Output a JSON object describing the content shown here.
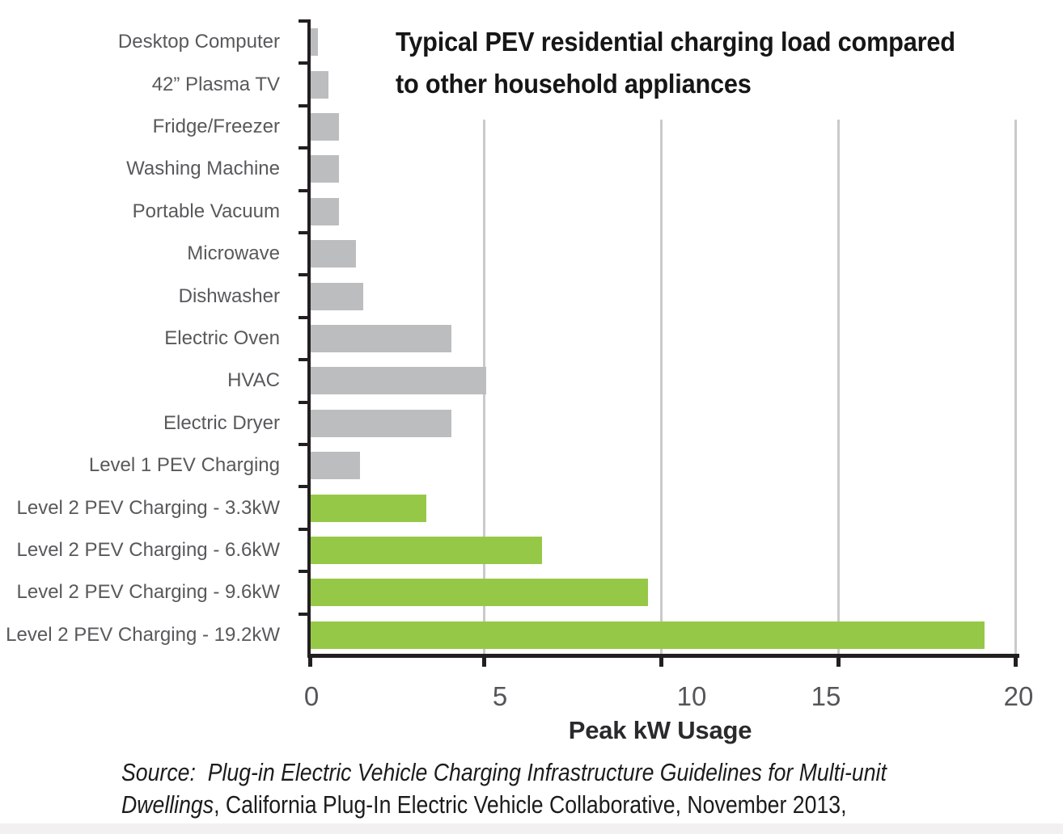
{
  "chart_data": {
    "type": "bar",
    "orientation": "horizontal",
    "title": "Typical PEV residential charging load compared to other household appliances",
    "title_lines": [
      "Typical PEV residential charging load compared",
      "to other household appliances"
    ],
    "xlabel": "Peak kW Usage",
    "xlim": [
      0,
      20
    ],
    "x_ticks": [
      "0",
      "5",
      "10",
      "15",
      "20"
    ],
    "grid": "vertical-gridlines-at-5-10-15-20",
    "legend": "none",
    "categories": [
      "Desktop Computer",
      "42” Plasma TV",
      "Fridge/Freezer",
      "Washing Machine",
      "Portable Vacuum",
      "Microwave",
      "Dishwasher",
      "Electric Oven",
      "HVAC",
      "Electric Dryer",
      "Level 1 PEV Charging",
      "Level 2 PEV Charging - 3.3kW",
      "Level 2 PEV Charging - 6.6kW",
      "Level 2 PEV Charging - 9.6kW",
      "Level 2 PEV Charging - 19.2kW"
    ],
    "values": [
      0.2,
      0.5,
      0.8,
      0.8,
      0.8,
      1.3,
      1.5,
      4.0,
      5.0,
      4.0,
      1.4,
      3.3,
      6.6,
      9.6,
      19.2
    ],
    "bar_types": [
      "appliance",
      "appliance",
      "appliance",
      "appliance",
      "appliance",
      "appliance",
      "appliance",
      "appliance",
      "appliance",
      "appliance",
      "appliance",
      "pev",
      "pev",
      "pev",
      "pev"
    ],
    "colors": {
      "appliance_bar": "#bbbdbf",
      "pev_bar": "#96c847",
      "axis": "#231f20",
      "gridline": "#c9cacb",
      "category_label_text": "#58595b",
      "tick_label_text": "#55565a",
      "title_text": "#161616"
    }
  },
  "source": {
    "line1": "Source:  Plug-in Electric Vehicle Charging Infrastructure Guidelines for Multi-unit",
    "line2_italic": "Dwellings",
    "line2_rest": ", California Plug-In Electric Vehicle Collaborative, November 2013,"
  }
}
